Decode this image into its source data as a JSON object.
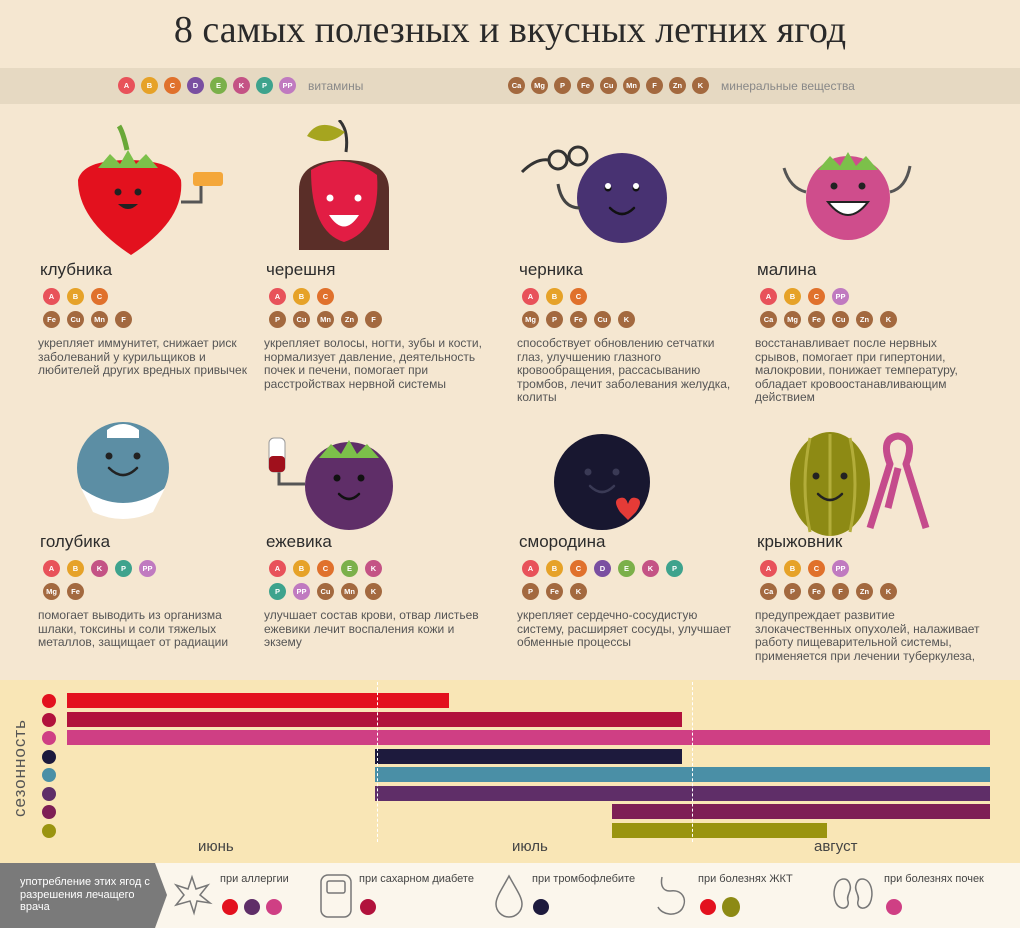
{
  "title": "8 самых полезных и вкусных летних ягод",
  "colors": {
    "A": "#e8525a",
    "B": "#e6a228",
    "C": "#e0712c",
    "D": "#7a4fa1",
    "E": "#7bb04a",
    "K": "#c45385",
    "P": "#3ea38d",
    "PP": "#c07ac0",
    "mineral": "#a3693f"
  },
  "legend": {
    "vitamins": [
      "A",
      "B",
      "C",
      "D",
      "E",
      "K",
      "P",
      "PP"
    ],
    "vitamins_label": "витамины",
    "minerals": [
      "Ca",
      "Mg",
      "P",
      "Fe",
      "Cu",
      "Mn",
      "F",
      "Zn",
      "K"
    ],
    "minerals_label": "минеральные вещества"
  },
  "berries": [
    {
      "name": "клубника",
      "vitamins": [
        "A",
        "B",
        "C"
      ],
      "minerals": [
        "Fe",
        "Cu",
        "Mn",
        "F"
      ],
      "desc": "укрепляет иммунитет, снижает риск заболеваний у курильщиков и любителей других вредных привычек"
    },
    {
      "name": "черешня",
      "vitamins": [
        "A",
        "B",
        "C"
      ],
      "minerals": [
        "P",
        "Cu",
        "Mn",
        "Zn",
        "F"
      ],
      "desc": "укрепляет волосы, ногти, зубы и кости, нормализует давление, деятельность почек и печени, помогает при расстройствах нервной системы"
    },
    {
      "name": "черника",
      "vitamins": [
        "A",
        "B",
        "C"
      ],
      "minerals": [
        "Mg",
        "P",
        "Fe",
        "Cu",
        "K"
      ],
      "desc": "способствует обновлению сетчатки глаз, улучшению глазного кровообращения, рассасыванию тромбов, лечит заболевания желудка, колиты"
    },
    {
      "name": "малина",
      "vitamins": [
        "A",
        "B",
        "C",
        "PP"
      ],
      "minerals": [
        "Ca",
        "Mg",
        "Fe",
        "Cu",
        "Zn",
        "K"
      ],
      "desc": "восстанавливает после нервных срывов, помогает при гипертонии, малокровии, понижает температуру, обладает кровоостанавливающим действием"
    },
    {
      "name": "голубика",
      "vitamins": [
        "A",
        "B",
        "K",
        "P",
        "PP"
      ],
      "minerals": [
        "Mg",
        "Fe"
      ],
      "desc": "помогает выводить из организма шлаки, токсины и соли тяжелых металлов, защищает от радиации"
    },
    {
      "name": "ежевика",
      "vitamins": [
        "A",
        "B",
        "C",
        "E",
        "K"
      ],
      "vitamins2": [
        "P",
        "PP"
      ],
      "minerals": [
        "Cu",
        "Mn",
        "K"
      ],
      "desc": "улучшает состав крови, отвар листьев ежевики лечит воспаления кожи и экзему"
    },
    {
      "name": "смородина",
      "vitamins": [
        "A",
        "B",
        "C",
        "D",
        "E",
        "K",
        "P"
      ],
      "minerals": [
        "P",
        "Fe",
        "K"
      ],
      "desc": "укрепляет сердечно-сосудистую систему, расширяет сосуды, улучшает обменные процессы"
    },
    {
      "name": "крыжовник",
      "vitamins": [
        "A",
        "B",
        "C",
        "PP"
      ],
      "minerals": [
        "Ca",
        "P",
        "Fe",
        "F",
        "Zn",
        "K"
      ],
      "desc": "предупреждает развитие злокачественных опухолей, налаживает работу пищеварительной системы, применяется при лечении туберкулеза,"
    }
  ],
  "season": {
    "label": "сезонность",
    "months": [
      "июнь",
      "июль",
      "август"
    ],
    "bars": [
      {
        "berry": "клубника",
        "color": "#e3111e",
        "start": 0.0,
        "end": 1.24
      },
      {
        "berry": "черешня",
        "color": "#b1123c",
        "start": 0.0,
        "end": 2.0
      },
      {
        "berry": "малина",
        "color": "#cf3f84",
        "start": 0.0,
        "end": 3.0
      },
      {
        "berry": "черника",
        "color": "#1d1a3d",
        "start": 1.0,
        "end": 2.0
      },
      {
        "berry": "голубика",
        "color": "#4a8fa6",
        "start": 1.0,
        "end": 3.0
      },
      {
        "berry": "ежевика",
        "color": "#5f2e68",
        "start": 1.0,
        "end": 3.0
      },
      {
        "berry": "смородина",
        "color": "#7e1f55",
        "start": 1.77,
        "end": 3.0
      },
      {
        "berry": "крыжовник",
        "color": "#9a9410",
        "start": 1.77,
        "end": 2.47
      }
    ]
  },
  "bottom": {
    "intro": "употребление этих ягод с разрешения лечащего врача",
    "items": [
      "при аллергии",
      "при сахарном диабете",
      "при тромбофлебите",
      "при болезнях ЖКТ",
      "при болезнях почек"
    ]
  }
}
